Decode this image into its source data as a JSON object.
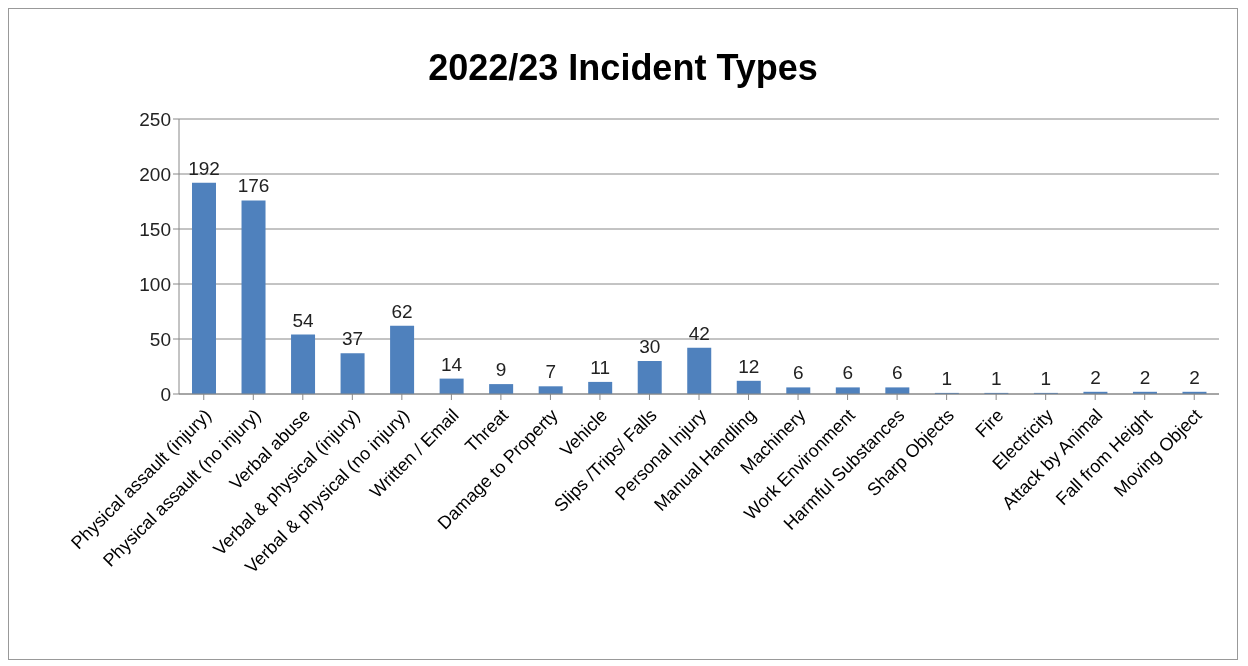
{
  "chart_data": {
    "type": "bar",
    "title": "2022/23 Incident Types",
    "categories": [
      "Physical assault (injury)",
      "Physical assault (no injury)",
      "Verbal abuse",
      "Verbal & physical (injury)",
      "Verbal & physical (no injury)",
      "Written / Email",
      "Threat",
      "Damage to Property",
      "Vehicle",
      "Slips /Trips/ Falls",
      "Personal Injury",
      "Manual Handling",
      "Machinery",
      "Work Environment",
      "Harmful Substances",
      "Sharp Objects",
      "Fire",
      "Electricity",
      "Attack by Animal",
      "Fall from Height",
      "Moving Object"
    ],
    "values": [
      192,
      176,
      54,
      37,
      62,
      14,
      9,
      7,
      11,
      30,
      42,
      12,
      6,
      6,
      6,
      1,
      1,
      1,
      2,
      2,
      2
    ],
    "color": "#4f81bd",
    "ylim": [
      0,
      250
    ],
    "yticks": [
      0,
      50,
      100,
      150,
      200,
      250
    ],
    "grid": "y",
    "data_labels": true
  }
}
